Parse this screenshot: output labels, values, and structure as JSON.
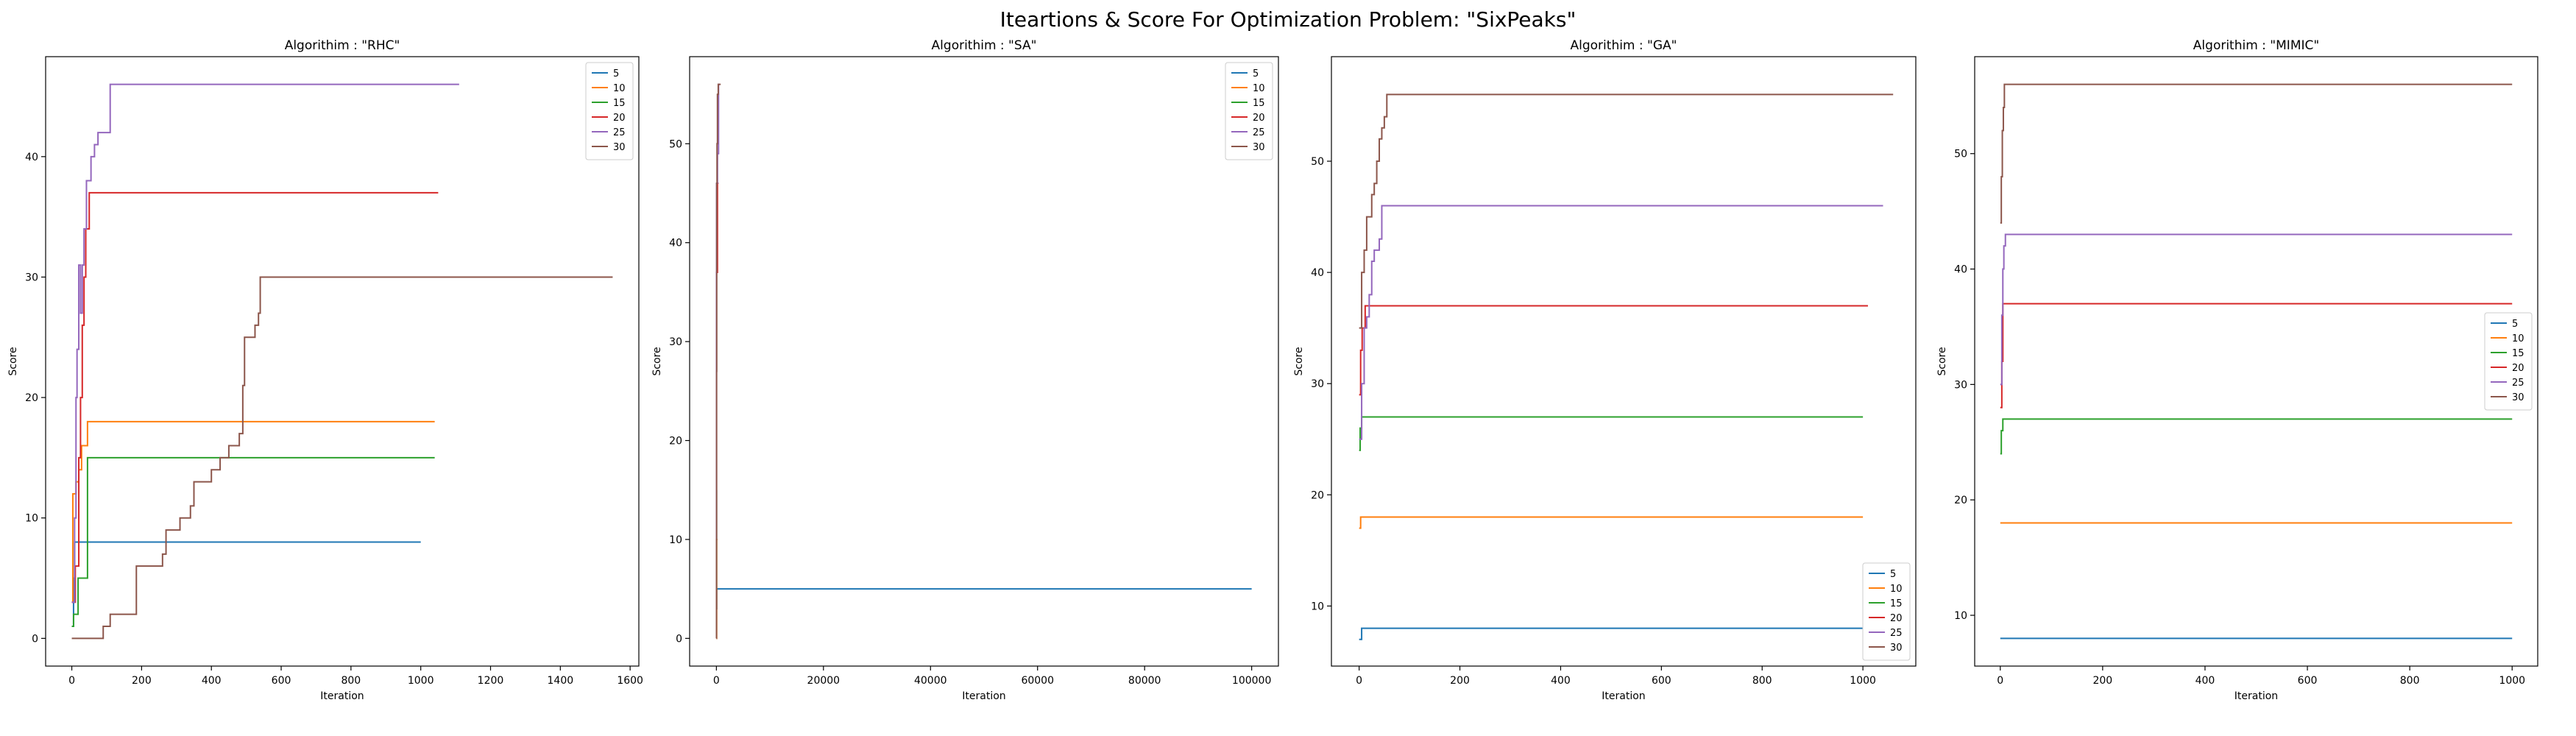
{
  "figure": {
    "suptitle": "Iteartions & Score For Optimization Problem: \"SixPeaks\""
  },
  "colors": {
    "5": "#1f77b4",
    "10": "#ff7f0e",
    "15": "#2ca02c",
    "20": "#d62728",
    "25": "#9467bd",
    "30": "#8c564b"
  },
  "chart_data": [
    {
      "type": "line",
      "title": "Algorithim : \"RHC\"",
      "xlabel": "Iteration",
      "ylabel": "Score",
      "xlim": [
        -75,
        1625
      ],
      "ylim": [
        -2.3,
        48.3
      ],
      "xticks": [
        0,
        200,
        400,
        600,
        800,
        1000,
        1200,
        1400,
        1600
      ],
      "yticks": [
        0,
        10,
        20,
        30,
        40
      ],
      "legend": "upper right",
      "series": [
        {
          "name": "5",
          "points": [
            [
              0,
              1
            ],
            [
              5,
              5
            ],
            [
              8,
              8
            ],
            [
              1000,
              8
            ]
          ]
        },
        {
          "name": "10",
          "points": [
            [
              0,
              3
            ],
            [
              3,
              12
            ],
            [
              10,
              12
            ],
            [
              12,
              13
            ],
            [
              18,
              13
            ],
            [
              20,
              14
            ],
            [
              25,
              14
            ],
            [
              28,
              16
            ],
            [
              40,
              16
            ],
            [
              45,
              18
            ],
            [
              1040,
              18
            ]
          ]
        },
        {
          "name": "15",
          "points": [
            [
              0,
              1
            ],
            [
              5,
              2
            ],
            [
              15,
              2
            ],
            [
              18,
              5
            ],
            [
              40,
              5
            ],
            [
              45,
              15
            ],
            [
              1040,
              15
            ]
          ]
        },
        {
          "name": "20",
          "points": [
            [
              0,
              3
            ],
            [
              10,
              6
            ],
            [
              20,
              15
            ],
            [
              25,
              20
            ],
            [
              30,
              26
            ],
            [
              35,
              30
            ],
            [
              40,
              34
            ],
            [
              50,
              37
            ],
            [
              1050,
              37
            ]
          ]
        },
        {
          "name": "25",
          "points": [
            [
              0,
              3
            ],
            [
              8,
              10
            ],
            [
              12,
              20
            ],
            [
              15,
              24
            ],
            [
              20,
              31
            ],
            [
              25,
              27
            ],
            [
              30,
              31
            ],
            [
              35,
              34
            ],
            [
              42,
              38
            ],
            [
              55,
              40
            ],
            [
              65,
              41
            ],
            [
              75,
              42
            ],
            [
              100,
              42
            ],
            [
              110,
              46
            ],
            [
              1110,
              46
            ]
          ]
        },
        {
          "name": "30",
          "points": [
            [
              0,
              0
            ],
            [
              80,
              0
            ],
            [
              90,
              1
            ],
            [
              110,
              2
            ],
            [
              180,
              2
            ],
            [
              185,
              6
            ],
            [
              260,
              7
            ],
            [
              270,
              9
            ],
            [
              300,
              9
            ],
            [
              310,
              10
            ],
            [
              330,
              10
            ],
            [
              340,
              11
            ],
            [
              350,
              13
            ],
            [
              390,
              13
            ],
            [
              400,
              14
            ],
            [
              420,
              14
            ],
            [
              425,
              15
            ],
            [
              450,
              16
            ],
            [
              480,
              17
            ],
            [
              490,
              21
            ],
            [
              495,
              25
            ],
            [
              520,
              25
            ],
            [
              525,
              26
            ],
            [
              535,
              27
            ],
            [
              540,
              30
            ],
            [
              1550,
              30
            ]
          ]
        }
      ]
    },
    {
      "type": "line",
      "title": "Algorithim : \"SA\"",
      "xlabel": "Iteration",
      "ylabel": "Score",
      "xlim": [
        -5000,
        105000
      ],
      "ylim": [
        -2.8,
        58.8
      ],
      "xticks": [
        0,
        20000,
        40000,
        60000,
        80000,
        100000
      ],
      "yticks": [
        0,
        10,
        20,
        30,
        40,
        50
      ],
      "legend": "upper right",
      "series": [
        {
          "name": "5",
          "points": [
            [
              0,
              3
            ],
            [
              60,
              5
            ],
            [
              100000,
              5
            ]
          ]
        },
        {
          "name": "10",
          "points": [
            [
              0,
              0
            ],
            [
              50,
              10
            ],
            [
              200,
              10
            ]
          ]
        },
        {
          "name": "15",
          "points": [
            [
              0,
              5
            ],
            [
              30,
              15
            ],
            [
              150,
              15
            ]
          ]
        },
        {
          "name": "20",
          "points": [
            [
              0,
              27
            ],
            [
              20,
              37
            ],
            [
              100,
              37
            ],
            [
              200,
              46
            ],
            [
              400,
              46
            ]
          ]
        },
        {
          "name": "25",
          "points": [
            [
              0,
              5
            ],
            [
              20,
              37
            ],
            [
              40,
              46
            ],
            [
              100,
              46
            ],
            [
              200,
              49
            ],
            [
              300,
              49
            ],
            [
              400,
              56
            ],
            [
              600,
              56
            ]
          ]
        },
        {
          "name": "30",
          "points": [
            [
              0,
              0
            ],
            [
              20,
              10
            ],
            [
              40,
              27
            ],
            [
              60,
              46
            ],
            [
              120,
              50
            ],
            [
              200,
              55
            ],
            [
              350,
              56
            ],
            [
              800,
              56
            ]
          ]
        }
      ]
    },
    {
      "type": "line",
      "title": "Algorithim : \"GA\"",
      "xlabel": "Iteration",
      "ylabel": "Score",
      "xlim": [
        -55,
        1105
      ],
      "ylim": [
        4.6,
        59.4
      ],
      "xticks": [
        0,
        200,
        400,
        600,
        800,
        1000
      ],
      "yticks": [
        10,
        20,
        30,
        40,
        50
      ],
      "legend": "lower right",
      "series": [
        {
          "name": "5",
          "points": [
            [
              0,
              7
            ],
            [
              3,
              7
            ],
            [
              5,
              8
            ],
            [
              1000,
              8
            ]
          ]
        },
        {
          "name": "10",
          "points": [
            [
              0,
              17
            ],
            [
              3,
              18
            ],
            [
              1000,
              18
            ]
          ]
        },
        {
          "name": "15",
          "points": [
            [
              0,
              24
            ],
            [
              2,
              26
            ],
            [
              5,
              27
            ],
            [
              1000,
              27
            ]
          ]
        },
        {
          "name": "20",
          "points": [
            [
              0,
              29
            ],
            [
              3,
              33
            ],
            [
              6,
              35
            ],
            [
              12,
              37
            ],
            [
              1010,
              37
            ]
          ]
        },
        {
          "name": "25",
          "points": [
            [
              0,
              25
            ],
            [
              5,
              30
            ],
            [
              10,
              35
            ],
            [
              15,
              36
            ],
            [
              20,
              38
            ],
            [
              25,
              41
            ],
            [
              30,
              42
            ],
            [
              38,
              42
            ],
            [
              40,
              43
            ],
            [
              45,
              46
            ],
            [
              1040,
              46
            ]
          ]
        },
        {
          "name": "30",
          "points": [
            [
              0,
              35
            ],
            [
              5,
              40
            ],
            [
              10,
              42
            ],
            [
              15,
              45
            ],
            [
              20,
              45
            ],
            [
              25,
              47
            ],
            [
              30,
              48
            ],
            [
              35,
              50
            ],
            [
              40,
              52
            ],
            [
              45,
              53
            ],
            [
              50,
              54
            ],
            [
              55,
              56
            ],
            [
              1060,
              56
            ]
          ]
        }
      ]
    },
    {
      "type": "line",
      "title": "Algorithim : \"MIMIC\"",
      "xlabel": "Iteration",
      "ylabel": "Score",
      "xlim": [
        -50,
        1050
      ],
      "ylim": [
        5.6,
        58.4
      ],
      "xticks": [
        0,
        200,
        400,
        600,
        800,
        1000
      ],
      "yticks": [
        10,
        20,
        30,
        40,
        50
      ],
      "legend": "center right",
      "series": [
        {
          "name": "5",
          "points": [
            [
              0,
              8
            ],
            [
              1000,
              8
            ]
          ]
        },
        {
          "name": "10",
          "points": [
            [
              0,
              18
            ],
            [
              1000,
              18
            ]
          ]
        },
        {
          "name": "15",
          "points": [
            [
              0,
              24
            ],
            [
              2,
              26
            ],
            [
              5,
              27
            ],
            [
              1000,
              27
            ]
          ]
        },
        {
          "name": "20",
          "points": [
            [
              0,
              28
            ],
            [
              3,
              32
            ],
            [
              5,
              37
            ],
            [
              1000,
              37
            ]
          ]
        },
        {
          "name": "25",
          "points": [
            [
              0,
              30
            ],
            [
              3,
              36
            ],
            [
              5,
              40
            ],
            [
              7,
              42
            ],
            [
              10,
              43
            ],
            [
              1000,
              43
            ]
          ]
        },
        {
          "name": "30",
          "points": [
            [
              0,
              44
            ],
            [
              2,
              48
            ],
            [
              4,
              52
            ],
            [
              6,
              54
            ],
            [
              8,
              56
            ],
            [
              1000,
              56
            ]
          ]
        }
      ]
    }
  ]
}
